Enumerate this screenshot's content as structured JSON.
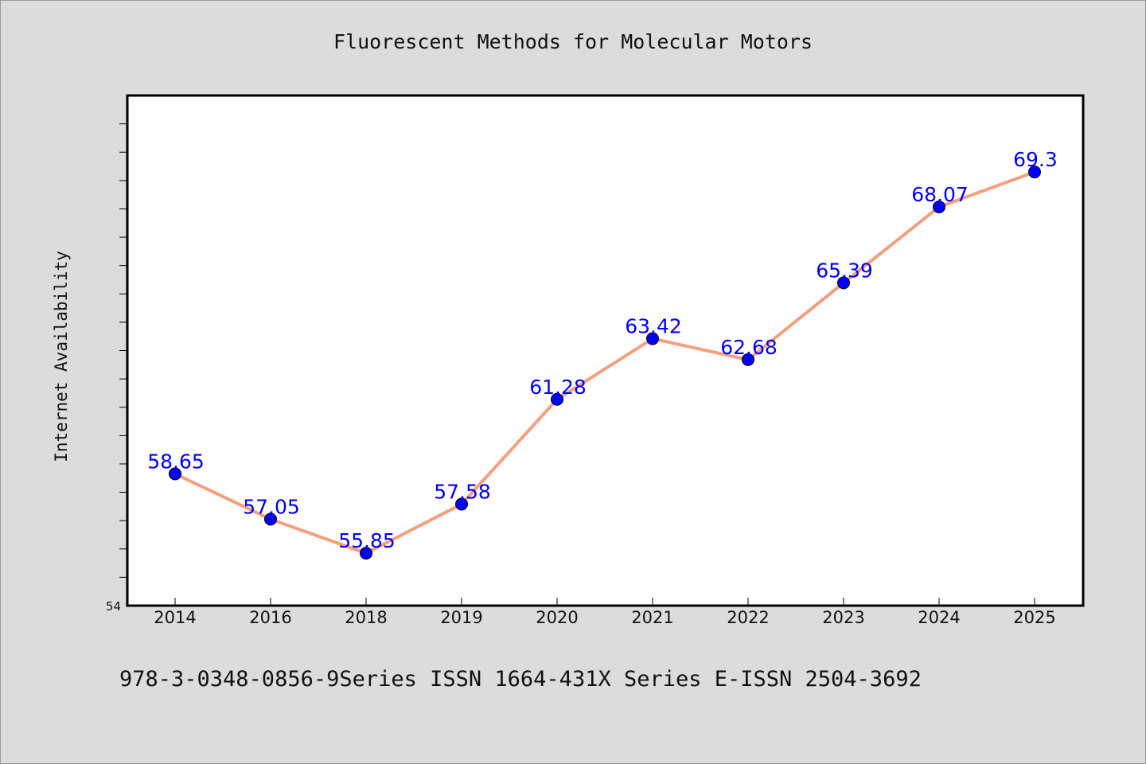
{
  "chart_data": {
    "type": "line",
    "title": "Fluorescent Methods for Molecular Motors",
    "xlabel": "",
    "ylabel": "Internet Availability",
    "categories": [
      "2014",
      "2016",
      "2018",
      "2019",
      "2020",
      "2021",
      "2022",
      "2023",
      "2024",
      "2025"
    ],
    "series": [
      {
        "values": [
          58.65,
          57.05,
          55.85,
          57.58,
          61.28,
          63.42,
          62.68,
          65.39,
          68.07,
          69.3
        ],
        "labels": [
          "58.65",
          "57.05",
          "55.85",
          "57.58",
          "61.28",
          "63.42",
          "62.68",
          "65.39",
          "68.07",
          "69.3"
        ]
      }
    ],
    "ylim": [
      54,
      72
    ],
    "ytick_label": "54",
    "grid": false,
    "legend": "none",
    "colors": {
      "line": "#f4a07e",
      "marker": "#0000ff",
      "label": "#0000ff",
      "background": "#dcdcdc",
      "plot_area": "#ffffff"
    }
  },
  "footer": {
    "text": "978-3-0348-0856-9Series ISSN 1664-431X Series E-ISSN 2504-3692"
  }
}
